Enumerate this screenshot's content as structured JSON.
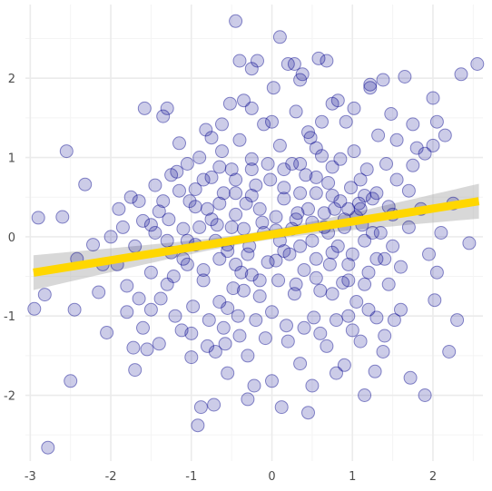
{
  "chart_data": {
    "type": "scatter",
    "title": "",
    "xlabel": "",
    "ylabel": "",
    "xlim": [
      -3.06,
      2.62
    ],
    "ylim": [
      -2.83,
      2.93
    ],
    "x_ticks": [
      -3,
      -2,
      -1,
      0,
      1,
      2
    ],
    "y_ticks": [
      -2,
      -1,
      0,
      1,
      2
    ],
    "x_tick_labels": [
      "-3",
      "-2",
      "-1",
      "0",
      "1",
      "2"
    ],
    "y_tick_labels": [
      "-2",
      "-1",
      "0",
      "1",
      "2"
    ],
    "grid": true,
    "legend": "none",
    "colors": {
      "points_fill": "#00008b",
      "points_stroke": "#00008b",
      "fit_line": "#ffd700",
      "confidence_band": "#a9a9a9",
      "grid_major": "#ebebeb",
      "grid_minor": "#f4f4f4",
      "tick_text": "#4d4d4d"
    },
    "regression": {
      "intercept": 0.03,
      "slope": 0.163,
      "x_range": [
        -2.96,
        2.57
      ],
      "ci_half_width_at_ends": 0.22,
      "ci_half_width_at_center": 0.06
    },
    "points": [
      [
        -2.9,
        0.24
      ],
      [
        -2.6,
        0.25
      ],
      [
        -2.55,
        1.08
      ],
      [
        -2.82,
        -0.73
      ],
      [
        -2.95,
        -0.91
      ],
      [
        -2.78,
        -2.66
      ],
      [
        -2.45,
        -0.92
      ],
      [
        -2.5,
        -1.82
      ],
      [
        -2.42,
        -0.28
      ],
      [
        -2.32,
        0.66
      ],
      [
        -2.22,
        -0.1
      ],
      [
        -2.15,
        -0.7
      ],
      [
        -2.05,
        -1.21
      ],
      [
        -2.0,
        0.0
      ],
      [
        -1.92,
        -0.35
      ],
      [
        -1.85,
        0.12
      ],
      [
        -1.8,
        -0.62
      ],
      [
        -1.75,
        0.5
      ],
      [
        -1.72,
        -1.4
      ],
      [
        -1.7,
        -1.68
      ],
      [
        -1.65,
        -0.78
      ],
      [
        -1.6,
        0.2
      ],
      [
        -1.58,
        1.62
      ],
      [
        -1.55,
        -1.42
      ],
      [
        -1.5,
        -0.92
      ],
      [
        -1.45,
        0.05
      ],
      [
        -1.4,
        0.32
      ],
      [
        -1.38,
        -0.78
      ],
      [
        -1.35,
        1.52
      ],
      [
        -1.3,
        1.62
      ],
      [
        -1.28,
        0.22
      ],
      [
        -1.22,
        -0.5
      ],
      [
        -1.18,
        0.82
      ],
      [
        -1.15,
        1.18
      ],
      [
        -1.12,
        -1.18
      ],
      [
        -1.05,
        -0.05
      ],
      [
        -1.02,
        0.45
      ],
      [
        -1.0,
        -1.52
      ],
      [
        -0.98,
        -0.88
      ],
      [
        -0.95,
        0.6
      ],
      [
        -0.92,
        -2.38
      ],
      [
        -0.9,
        1.0
      ],
      [
        -0.88,
        -2.15
      ],
      [
        -0.85,
        -0.42
      ],
      [
        -0.82,
        1.35
      ],
      [
        -0.8,
        0.35
      ],
      [
        -0.78,
        -1.05
      ],
      [
        -0.75,
        0.75
      ],
      [
        -0.72,
        -2.12
      ],
      [
        -0.7,
        -1.45
      ],
      [
        -0.68,
        0.15
      ],
      [
        -0.65,
        -0.82
      ],
      [
        -0.62,
        1.08
      ],
      [
        -0.6,
        0.55
      ],
      [
        -0.58,
        -1.35
      ],
      [
        -0.55,
        -0.18
      ],
      [
        -0.52,
        1.68
      ],
      [
        -0.5,
        0.85
      ],
      [
        -0.48,
        -0.65
      ],
      [
        -0.45,
        0.28
      ],
      [
        -0.42,
        -1.0
      ],
      [
        -0.4,
        1.22
      ],
      [
        -0.38,
        -0.45
      ],
      [
        -0.35,
        1.72
      ],
      [
        -0.32,
        0.42
      ],
      [
        -0.3,
        -1.5
      ],
      [
        -0.28,
        -0.12
      ],
      [
        -0.25,
        0.98
      ],
      [
        -0.22,
        -1.88
      ],
      [
        -0.2,
        0.65
      ],
      [
        -0.18,
        2.22
      ],
      [
        -0.15,
        -0.75
      ],
      [
        -0.12,
        0.18
      ],
      [
        -0.1,
        1.42
      ],
      [
        -0.08,
        -1.28
      ],
      [
        -0.05,
        -0.32
      ],
      [
        -0.02,
        0.72
      ],
      [
        0.0,
        -0.95
      ],
      [
        0.02,
        1.88
      ],
      [
        0.05,
        0.08
      ],
      [
        0.08,
        -0.55
      ],
      [
        0.1,
        1.15
      ],
      [
        0.12,
        -2.15
      ],
      [
        0.15,
        0.48
      ],
      [
        0.18,
        -1.12
      ],
      [
        0.2,
        2.18
      ],
      [
        0.22,
        -0.22
      ],
      [
        0.25,
        0.92
      ],
      [
        0.28,
        -0.72
      ],
      [
        0.3,
        1.58
      ],
      [
        0.32,
        0.3
      ],
      [
        0.35,
        -1.6
      ],
      [
        0.38,
        2.05
      ],
      [
        0.4,
        -0.42
      ],
      [
        0.42,
        0.78
      ],
      [
        0.45,
        -2.22
      ],
      [
        0.48,
        1.25
      ],
      [
        0.5,
        -0.05
      ],
      [
        0.52,
        -1.02
      ],
      [
        0.55,
        0.55
      ],
      [
        0.58,
        2.25
      ],
      [
        0.6,
        -0.68
      ],
      [
        0.62,
        1.02
      ],
      [
        0.65,
        0.12
      ],
      [
        0.68,
        -1.38
      ],
      [
        0.7,
        0.68
      ],
      [
        0.72,
        -0.35
      ],
      [
        0.75,
        1.68
      ],
      [
        0.78,
        0.35
      ],
      [
        0.8,
        -1.72
      ],
      [
        0.82,
        -0.12
      ],
      [
        0.85,
        0.98
      ],
      [
        0.88,
        -0.58
      ],
      [
        0.9,
        0.22
      ],
      [
        0.92,
        1.45
      ],
      [
        0.95,
        -1.0
      ],
      [
        0.98,
        0.62
      ],
      [
        1.0,
        -0.22
      ],
      [
        1.02,
        1.08
      ],
      [
        1.05,
        -0.82
      ],
      [
        1.08,
        0.42
      ],
      [
        1.1,
        -1.32
      ],
      [
        1.12,
        0.15
      ],
      [
        1.15,
        -2.0
      ],
      [
        1.18,
        0.85
      ],
      [
        1.2,
        -0.45
      ],
      [
        1.22,
        1.92
      ],
      [
        1.25,
        0.48
      ],
      [
        1.28,
        -1.7
      ],
      [
        1.3,
        -1.02
      ],
      [
        1.32,
        1.28
      ],
      [
        1.35,
        0.05
      ],
      [
        1.38,
        -1.45
      ],
      [
        1.4,
        -0.28
      ],
      [
        1.42,
        0.92
      ],
      [
        1.45,
        -0.6
      ],
      [
        1.48,
        1.55
      ],
      [
        1.5,
        0.28
      ],
      [
        1.52,
        -1.05
      ],
      [
        1.55,
        0.72
      ],
      [
        1.6,
        -0.38
      ],
      [
        1.65,
        2.02
      ],
      [
        1.7,
        0.58
      ],
      [
        1.72,
        -1.78
      ],
      [
        1.75,
        0.9
      ],
      [
        1.8,
        1.12
      ],
      [
        1.85,
        0.35
      ],
      [
        1.9,
        -2.0
      ],
      [
        1.95,
        -0.22
      ],
      [
        2.0,
        1.15
      ],
      [
        2.02,
        -0.8
      ],
      [
        2.05,
        1.45
      ],
      [
        2.1,
        0.05
      ],
      [
        2.15,
        1.28
      ],
      [
        2.2,
        -1.45
      ],
      [
        2.25,
        0.42
      ],
      [
        2.3,
        -1.05
      ],
      [
        2.35,
        2.05
      ],
      [
        2.45,
        -0.08
      ],
      [
        2.55,
        2.18
      ],
      [
        2.0,
        1.75
      ],
      [
        2.05,
        -0.45
      ],
      [
        -0.45,
        2.72
      ],
      [
        -0.4,
        2.22
      ],
      [
        -0.25,
        2.12
      ],
      [
        0.1,
        2.52
      ],
      [
        0.28,
        2.18
      ],
      [
        0.35,
        1.98
      ],
      [
        0.68,
        2.22
      ],
      [
        1.22,
        1.88
      ],
      [
        1.38,
        1.98
      ],
      [
        1.02,
        1.62
      ],
      [
        0.82,
        1.72
      ],
      [
        -0.62,
        1.42
      ],
      [
        -0.75,
        1.25
      ],
      [
        -0.25,
        1.62
      ],
      [
        0.0,
        1.45
      ],
      [
        0.45,
        1.32
      ],
      [
        0.62,
        1.45
      ],
      [
        1.55,
        1.22
      ],
      [
        1.75,
        1.42
      ],
      [
        1.9,
        1.05
      ],
      [
        -0.55,
        -0.9
      ],
      [
        -0.35,
        -0.68
      ],
      [
        -0.15,
        -0.55
      ],
      [
        0.05,
        -0.3
      ],
      [
        0.3,
        -0.6
      ],
      [
        0.55,
        -0.28
      ],
      [
        0.75,
        -0.72
      ],
      [
        0.95,
        -0.55
      ],
      [
        1.15,
        -0.6
      ],
      [
        1.3,
        -0.28
      ],
      [
        -1.25,
        -0.2
      ],
      [
        -1.1,
        0.1
      ],
      [
        -0.95,
        -0.1
      ],
      [
        -0.75,
        0.22
      ],
      [
        -0.55,
        -0.1
      ],
      [
        -0.35,
        0.1
      ],
      [
        -0.15,
        0.35
      ],
      [
        0.05,
        0.25
      ],
      [
        0.25,
        0.1
      ],
      [
        0.45,
        0.35
      ],
      [
        0.65,
        0.3
      ],
      [
        0.85,
        0.45
      ],
      [
        1.05,
        0.25
      ],
      [
        1.25,
        0.05
      ],
      [
        1.45,
        0.38
      ],
      [
        -1.35,
        0.45
      ],
      [
        -1.15,
        0.58
      ],
      [
        -0.95,
        0.38
      ],
      [
        -0.65,
        0.42
      ],
      [
        -0.45,
        0.55
      ],
      [
        -0.25,
        0.52
      ],
      [
        0.15,
        0.62
      ],
      [
        0.35,
        0.55
      ],
      [
        0.55,
        0.75
      ],
      [
        0.75,
        0.52
      ],
      [
        0.95,
        0.35
      ],
      [
        1.15,
        0.52
      ],
      [
        -1.5,
        -0.45
      ],
      [
        -1.3,
        -0.6
      ],
      [
        -1.05,
        -0.35
      ],
      [
        -0.85,
        -0.55
      ],
      [
        -0.65,
        -0.28
      ],
      [
        -0.45,
        -0.35
      ],
      [
        -0.25,
        -0.48
      ],
      [
        0.15,
        -0.18
      ],
      [
        0.35,
        -0.12
      ],
      [
        0.55,
        -0.52
      ],
      [
        0.75,
        -0.2
      ],
      [
        0.95,
        -0.35
      ],
      [
        1.15,
        -0.05
      ],
      [
        -1.65,
        0.45
      ],
      [
        -1.45,
        0.65
      ],
      [
        -1.25,
        0.78
      ],
      [
        -1.05,
        0.92
      ],
      [
        -0.85,
        0.72
      ],
      [
        -0.65,
        0.88
      ],
      [
        -0.45,
        0.72
      ],
      [
        -0.25,
        0.85
      ],
      [
        -0.05,
        0.92
      ],
      [
        0.15,
        0.85
      ],
      [
        0.35,
        0.92
      ],
      [
        0.55,
        1.12
      ],
      [
        0.75,
        0.88
      ],
      [
        1.1,
        0.72
      ],
      [
        -1.7,
        -0.12
      ],
      [
        -1.5,
        0.15
      ],
      [
        -1.3,
        -0.05
      ],
      [
        -1.1,
        -0.28
      ],
      [
        -0.9,
        0.12
      ],
      [
        -0.7,
        -0.05
      ],
      [
        -0.5,
        0.12
      ],
      [
        -0.3,
        -0.22
      ],
      [
        -0.1,
        0.05
      ],
      [
        0.1,
        -0.05
      ],
      [
        0.3,
        0.22
      ],
      [
        0.5,
        0.18
      ],
      [
        0.7,
        0.05
      ],
      [
        0.9,
        0.12
      ],
      [
        1.1,
        0.35
      ],
      [
        1.3,
        0.55
      ],
      [
        1.5,
        -0.12
      ],
      [
        1.7,
        0.12
      ],
      [
        -1.9,
        0.35
      ],
      [
        -2.1,
        -0.35
      ],
      [
        -1.8,
        -0.95
      ],
      [
        -1.6,
        -1.15
      ],
      [
        -1.4,
        -1.35
      ],
      [
        -1.2,
        -1.0
      ],
      [
        -1.0,
        -1.22
      ],
      [
        -0.8,
        -1.38
      ],
      [
        -0.6,
        -1.15
      ],
      [
        -0.4,
        -1.25
      ],
      [
        -0.2,
        -1.05
      ],
      [
        0.2,
        -1.32
      ],
      [
        0.4,
        -1.15
      ],
      [
        0.6,
        -1.22
      ],
      [
        0.8,
        -1.05
      ],
      [
        1.0,
        -1.18
      ],
      [
        1.2,
        -0.92
      ],
      [
        1.4,
        -1.25
      ],
      [
        -0.3,
        -2.05
      ],
      [
        0.0,
        -1.82
      ],
      [
        0.5,
        -1.88
      ],
      [
        0.9,
        -1.62
      ],
      [
        -0.55,
        -1.72
      ],
      [
        1.6,
        -0.92
      ]
    ]
  }
}
